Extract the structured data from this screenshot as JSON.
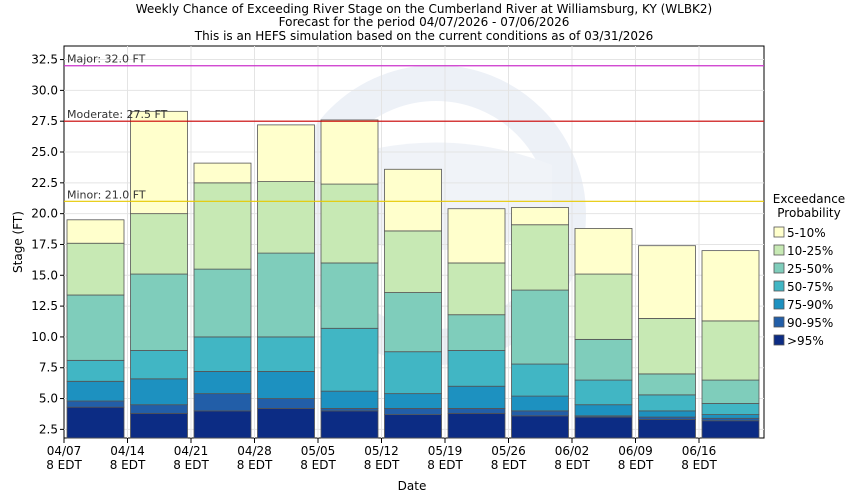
{
  "chart_data": {
    "type": "bar",
    "stacked": true,
    "title_lines": [
      "Weekly Chance of Exceeding River Stage on the Cumberland River at Williamsburg, KY (WLBK2)",
      "Forecast for the period 04/07/2026 - 07/06/2026",
      "This is an HEFS simulation based on the current conditions as of 03/31/2026"
    ],
    "xlabel": "Date",
    "ylabel": "Stage (FT)",
    "ylim": [
      1.8,
      33.6
    ],
    "yticks": [
      "2.5",
      "5.0",
      "7.5",
      "10.0",
      "12.5",
      "15.0",
      "17.5",
      "20.0",
      "22.5",
      "25.0",
      "27.5",
      "30.0",
      "32.5"
    ],
    "xtick_labels": [
      {
        "date": "04/07",
        "time": "8 EDT"
      },
      {
        "date": "04/14",
        "time": "8 EDT"
      },
      {
        "date": "04/21",
        "time": "8 EDT"
      },
      {
        "date": "04/28",
        "time": "8 EDT"
      },
      {
        "date": "05/05",
        "time": "8 EDT"
      },
      {
        "date": "05/12",
        "time": "8 EDT"
      },
      {
        "date": "05/19",
        "time": "8 EDT"
      },
      {
        "date": "05/26",
        "time": "8 EDT"
      },
      {
        "date": "06/02",
        "time": "8 EDT"
      },
      {
        "date": "06/09",
        "time": "8 EDT"
      },
      {
        "date": "06/16",
        "time": "8 EDT"
      }
    ],
    "weeks": [
      [
        4.3,
        4.8,
        6.4,
        8.1,
        13.4,
        17.6,
        19.5
      ],
      [
        3.8,
        4.5,
        6.6,
        8.9,
        15.1,
        20.0,
        28.3
      ],
      [
        4.0,
        5.4,
        7.2,
        10.0,
        15.5,
        22.5,
        24.1
      ],
      [
        4.2,
        5.0,
        7.2,
        10.0,
        16.8,
        22.6,
        27.2
      ],
      [
        4.0,
        4.2,
        5.6,
        10.7,
        16.0,
        22.4,
        27.6
      ],
      [
        3.7,
        4.2,
        5.4,
        8.8,
        13.6,
        18.6,
        23.6
      ],
      [
        3.8,
        4.2,
        6.0,
        8.9,
        11.8,
        16.0,
        20.4
      ],
      [
        3.6,
        4.0,
        5.2,
        7.8,
        13.8,
        19.1,
        20.5
      ],
      [
        3.5,
        3.6,
        4.5,
        6.5,
        9.8,
        15.1,
        18.8
      ],
      [
        3.3,
        3.5,
        4.0,
        5.3,
        7.0,
        11.5,
        17.4
      ],
      [
        3.2,
        3.4,
        3.7,
        4.6,
        6.5,
        11.3,
        17.0
      ]
    ],
    "series": [
      {
        "name": ">95%",
        "color": "#0c2c84"
      },
      {
        "name": "90-95%",
        "color": "#225ea8"
      },
      {
        "name": "75-90%",
        "color": "#1d91c0"
      },
      {
        "name": "50-75%",
        "color": "#41b6c4"
      },
      {
        "name": "25-50%",
        "color": "#7fcdbb"
      },
      {
        "name": "10-25%",
        "color": "#c7e9b4"
      },
      {
        "name": "5-10%",
        "color": "#ffffcc"
      }
    ],
    "thresholds": [
      {
        "label": "Major: 32.0 FT",
        "value": 32.0,
        "color": "#cc33cc"
      },
      {
        "label": "Moderate: 27.5 FT",
        "value": 27.5,
        "color": "#cc0000"
      },
      {
        "label": "Minor: 21.0 FT",
        "value": 21.0,
        "color": "#e6c800"
      }
    ],
    "legend": {
      "title_lines": [
        "Exceedance",
        "Probability"
      ],
      "position": "right",
      "order": [
        "5-10%",
        "10-25%",
        "25-50%",
        "50-75%",
        "75-90%",
        "90-95%",
        ">95%"
      ]
    },
    "watermark": "NOAA"
  }
}
